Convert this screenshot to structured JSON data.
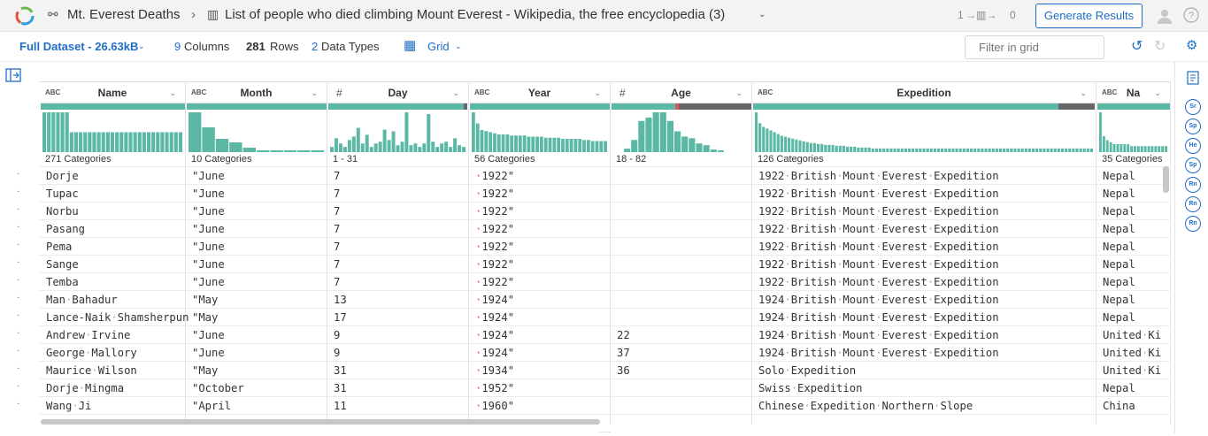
{
  "app": {
    "breadcrumb_parent": "Mt. Everest Deaths",
    "breadcrumb_title": "List of people who died climbing Mount Everest - Wikipedia, the free encyclopedia (3)",
    "flow": "1",
    "flow2": "0",
    "generate": "Generate Results"
  },
  "toolbar": {
    "dataset": "Full Dataset - 26.63kB",
    "columns_count": "9",
    "columns_label": "Columns",
    "rows_count": "281",
    "rows_label": "Rows",
    "types_count": "2",
    "types_label": "Data Types",
    "view": "Grid",
    "filter_placeholder": "Filter in grid"
  },
  "colors": {
    "accent": "#1f6ec6",
    "histogram": "#5ab8a5",
    "invalid": "#e05555",
    "missing": "#666666"
  },
  "columns": [
    {
      "name": "Name",
      "type": "ABC",
      "summary": "271 Categories"
    },
    {
      "name": "Month",
      "type": "ABC",
      "summary": "10 Categories"
    },
    {
      "name": "Day",
      "type": "#",
      "summary": "1 - 31"
    },
    {
      "name": "Year",
      "type": "ABC",
      "summary": "56 Categories"
    },
    {
      "name": "Age",
      "type": "#",
      "summary": "18 - 82"
    },
    {
      "name": "Expedition",
      "type": "ABC",
      "summary": "126 Categories"
    },
    {
      "name": "Na",
      "type": "ABC",
      "summary": "35 Categories"
    }
  ],
  "histograms": {
    "Name": [
      16,
      16,
      16,
      16,
      16,
      16,
      8,
      8,
      8,
      8,
      8,
      8,
      8,
      8,
      8,
      8,
      8,
      8,
      8,
      8,
      8,
      8,
      8,
      8,
      8,
      8,
      8,
      8,
      8,
      8,
      8
    ],
    "Month": [
      45,
      28,
      15,
      11,
      5,
      2,
      2,
      2,
      2,
      2
    ],
    "Day": [
      6,
      16,
      10,
      6,
      14,
      18,
      28,
      10,
      20,
      6,
      10,
      12,
      26,
      14,
      24,
      8,
      12,
      46,
      8,
      10,
      6,
      10,
      44,
      12,
      6,
      10,
      12,
      6,
      16,
      8,
      6
    ],
    "Year": [
      36,
      26,
      20,
      19,
      18,
      17,
      16,
      16,
      16,
      15,
      15,
      15,
      15,
      14,
      14,
      14,
      14,
      13,
      13,
      13,
      13,
      12,
      12,
      12,
      12,
      12,
      11,
      11,
      10,
      10,
      10,
      10
    ],
    "Age": [
      4,
      14,
      36,
      40,
      46,
      46,
      36,
      24,
      18,
      16,
      10,
      8,
      3,
      2
    ],
    "Expedition": [
      44,
      32,
      28,
      26,
      24,
      22,
      20,
      18,
      17,
      16,
      15,
      14,
      13,
      12,
      11,
      10,
      10,
      9,
      9,
      8,
      8,
      8,
      7,
      7,
      7,
      6,
      6,
      6,
      5,
      5,
      5,
      5,
      4,
      4,
      4,
      4,
      4,
      4,
      4,
      4,
      4,
      4,
      4,
      4,
      4,
      4,
      4,
      4,
      4,
      4,
      4,
      4,
      4,
      4,
      4,
      4,
      4,
      4,
      4,
      4,
      4,
      4,
      4,
      4,
      4,
      4,
      4,
      4,
      4,
      4,
      4,
      4,
      4,
      4,
      4,
      4,
      4,
      4,
      4,
      4,
      4,
      4,
      4,
      4,
      4,
      4,
      4,
      4,
      4,
      4,
      4,
      4,
      4
    ],
    "Na": [
      20,
      8,
      6,
      5,
      4,
      4,
      4,
      4,
      4,
      3,
      3,
      3,
      3,
      3,
      3,
      3,
      3,
      3,
      3,
      3
    ]
  },
  "rows": [
    [
      "Dorje",
      "\"June",
      "7",
      "·1922\"",
      "",
      "1922·British·Mount·Everest·Expedition",
      "Nepal"
    ],
    [
      "Tupac",
      "\"June",
      "7",
      "·1922\"",
      "",
      "1922·British·Mount·Everest·Expedition",
      "Nepal"
    ],
    [
      "Norbu",
      "\"June",
      "7",
      "·1922\"",
      "",
      "1922·British·Mount·Everest·Expedition",
      "Nepal"
    ],
    [
      "Pasang",
      "\"June",
      "7",
      "·1922\"",
      "",
      "1922·British·Mount·Everest·Expedition",
      "Nepal"
    ],
    [
      "Pema",
      "\"June",
      "7",
      "·1922\"",
      "",
      "1922·British·Mount·Everest·Expedition",
      "Nepal"
    ],
    [
      "Sange",
      "\"June",
      "7",
      "·1922\"",
      "",
      "1922·British·Mount·Everest·Expedition",
      "Nepal"
    ],
    [
      "Temba",
      "\"June",
      "7",
      "·1922\"",
      "",
      "1922·British·Mount·Everest·Expedition",
      "Nepal"
    ],
    [
      "Man·Bahadur",
      "\"May",
      "13",
      "·1924\"",
      "",
      "1924·British·Mount·Everest·Expedition",
      "Nepal"
    ],
    [
      "Lance-Naik·Shamsherpun",
      "\"May",
      "17",
      "·1924\"",
      "",
      "1924·British·Mount·Everest·Expedition",
      "Nepal"
    ],
    [
      "Andrew·Irvine",
      "\"June",
      "9",
      "·1924\"",
      "22",
      "1924·British·Mount·Everest·Expedition",
      "United·Ki"
    ],
    [
      "George·Mallory",
      "\"June",
      "9",
      "·1924\"",
      "37",
      "1924·British·Mount·Everest·Expedition",
      "United·Ki"
    ],
    [
      "Maurice·Wilson",
      "\"May",
      "31",
      "·1934\"",
      "36",
      "Solo·Expedition",
      "United·Ki"
    ],
    [
      "Dorje·Mingma",
      "\"October",
      "31",
      "·1952\"",
      "",
      "Swiss·Expedition",
      "Nepal"
    ],
    [
      "Wang·Ji",
      "\"April",
      "11",
      "·1960\"",
      "",
      "Chinese·Expedition·Northern·Slope",
      "China"
    ]
  ],
  "side_pills": [
    "Sr",
    "Sp",
    "He",
    "Sp",
    "Rn",
    "Rn",
    "Rn"
  ]
}
